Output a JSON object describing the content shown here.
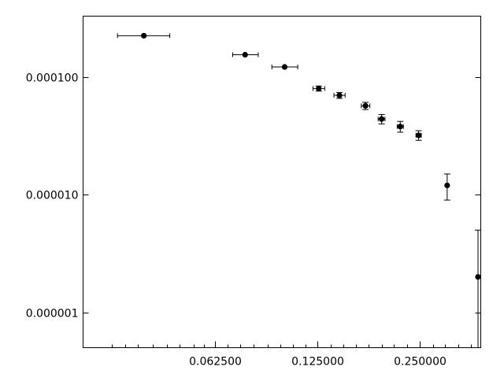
{
  "chart_data": {
    "type": "scatter",
    "title": "",
    "xlabel": "",
    "ylabel": "",
    "x_scale": "log2",
    "y_scale": "log10",
    "xlim": [
      0.0255,
      0.378
    ],
    "ylim": [
      5e-07,
      0.00033
    ],
    "grid": false,
    "legend": "none",
    "x_ticks": [
      {
        "value": 0.0625,
        "label": "0.062500"
      },
      {
        "value": 0.125,
        "label": "0.125000"
      },
      {
        "value": 0.25,
        "label": "0.250000"
      }
    ],
    "x_minor_ticks": [
      0.031,
      0.034,
      0.037,
      0.041,
      0.045,
      0.049,
      0.054,
      0.058,
      0.068,
      0.074,
      0.081,
      0.089,
      0.097,
      0.106,
      0.115,
      0.137,
      0.149,
      0.162,
      0.177,
      0.193,
      0.21,
      0.229,
      0.273,
      0.297,
      0.324,
      0.353
    ],
    "y_ticks": [
      {
        "value": 1e-06,
        "label": "0.000001"
      },
      {
        "value": 1e-05,
        "label": "0.000010"
      },
      {
        "value": 0.0001,
        "label": "0.000100"
      }
    ],
    "series": [
      {
        "points": [
          {
            "x": 0.0385,
            "y": 0.000225,
            "xerr": [
              0.0063,
              0.0074
            ]
          },
          {
            "x": 0.0765,
            "y": 0.000155,
            "xerr": [
              0.0062,
              0.0071
            ]
          },
          {
            "x": 0.1,
            "y": 0.000122,
            "xerr": [
              0.0083,
              0.0093
            ]
          },
          {
            "x": 0.126,
            "y": 8e-05,
            "xerr": [
              0.0048,
              0.0052
            ],
            "yerr": [
              4e-06,
              4e-06
            ]
          },
          {
            "x": 0.145,
            "y": 7e-05,
            "xerr": [
              0.0053,
              0.0057
            ],
            "yerr": [
              4e-06,
              4e-06
            ]
          },
          {
            "x": 0.173,
            "y": 5.7e-05,
            "xerr": [
              0.0048,
              0.0052
            ],
            "yerr": [
              4e-06,
              4e-06
            ]
          },
          {
            "x": 0.193,
            "y": 4.4e-05,
            "xerr": [
              0.0045,
              0.0045
            ],
            "yerr": [
              4e-06,
              4e-06
            ]
          },
          {
            "x": 0.219,
            "y": 3.8e-05,
            "xerr": [
              0.0045,
              0.0047
            ],
            "yerr": [
              4e-06,
              4e-06
            ]
          },
          {
            "x": 0.248,
            "y": 3.2e-05,
            "xerr": [
              0.0044,
              0.0046
            ],
            "yerr": [
              3e-06,
              3e-06
            ]
          },
          {
            "x": 0.301,
            "y": 1.2e-05,
            "xerr": [
              0.0025,
              0.0025
            ],
            "yerr": [
              3e-06,
              3e-06
            ]
          },
          {
            "x": 0.371,
            "y": 2e-06,
            "yerr": [
              1.5e-06,
              3e-06
            ]
          }
        ]
      }
    ]
  }
}
